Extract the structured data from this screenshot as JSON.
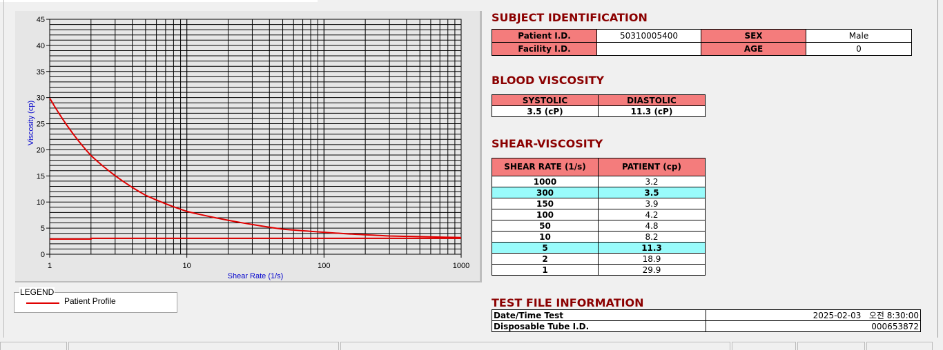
{
  "chart_data": {
    "type": "line",
    "xlabel": "Shear Rate (1/s)",
    "ylabel": "Viscosity (cp)",
    "xscale": "log",
    "xlim": [
      1,
      1000
    ],
    "ylim": [
      0,
      45
    ],
    "xticks": [
      "1",
      "10",
      "100",
      "1000"
    ],
    "yticks": [
      "0",
      "5",
      "10",
      "15",
      "20",
      "25",
      "30",
      "35",
      "40",
      "45"
    ],
    "grid": true,
    "legend_position": "below-left",
    "series": [
      {
        "name": "Patient Profile",
        "color": "#e00000",
        "points": [
          [
            1,
            29.9
          ],
          [
            2,
            18.9
          ],
          [
            5,
            11.3
          ],
          [
            10,
            8.2
          ],
          [
            50,
            4.8
          ],
          [
            100,
            4.2
          ],
          [
            150,
            3.9
          ],
          [
            300,
            3.5
          ],
          [
            1000,
            3.2
          ]
        ]
      },
      {
        "color": "#e00000",
        "points": [
          [
            1,
            2.9
          ],
          [
            2,
            2.9
          ],
          [
            2,
            3.05
          ],
          [
            1000,
            3.05
          ]
        ]
      }
    ]
  },
  "legend": {
    "title": "LEGEND",
    "label": "Patient Profile"
  },
  "subject": {
    "title": "SUBJECT IDENTIFICATION",
    "patient_id_label": "Patient I.D.",
    "patient_id": "50310005400",
    "sex_label": "SEX",
    "sex": "Male",
    "facility_label": "Facility I.D.",
    "facility": "",
    "age_label": "AGE",
    "age": "0"
  },
  "blood": {
    "title": "BLOOD VISCOSITY",
    "systolic_label": "SYSTOLIC",
    "diastolic_label": "DIASTOLIC",
    "systolic": "3.5 (cP)",
    "diastolic": "11.3 (cP)"
  },
  "shear": {
    "title": "SHEAR-VISCOSITY",
    "col1": "SHEAR RATE (1/s)",
    "col2": "PATIENT (cp)",
    "rows": [
      [
        "1000",
        "3.2",
        false
      ],
      [
        "300",
        "3.5",
        true
      ],
      [
        "150",
        "3.9",
        false
      ],
      [
        "100",
        "4.2",
        false
      ],
      [
        "50",
        "4.8",
        false
      ],
      [
        "10",
        "8.2",
        false
      ],
      [
        "5",
        "11.3",
        true
      ],
      [
        "2",
        "18.9",
        false
      ],
      [
        "1",
        "29.9",
        false
      ]
    ],
    "highlight_color": "#99fbfb"
  },
  "testfile": {
    "title": "TEST FILE INFORMATION",
    "date_label": "Date/Time Test",
    "date": "2025-02-03   오전 8:30:00",
    "tube_label": "Disposable Tube I.D.",
    "tube": "000653872"
  },
  "colors": {
    "header": "#f47c7c",
    "title": "#8b0000",
    "axis_label": "#0000cc"
  }
}
